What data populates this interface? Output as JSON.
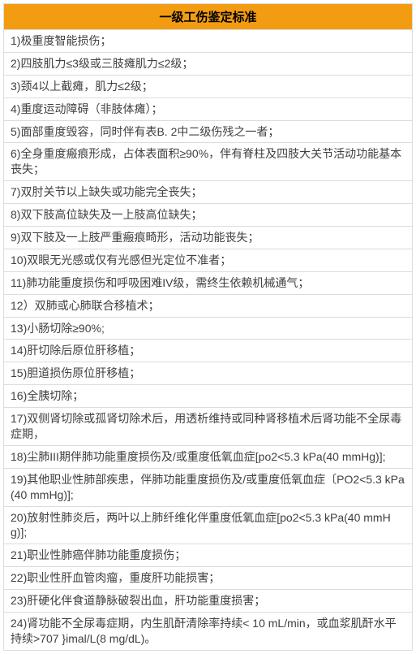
{
  "table": {
    "header_text": "一级工伤鉴定标准",
    "header_bg": "#f39c12",
    "header_text_color": "#000000",
    "header_fontsize": "15px",
    "border_color": "#dcdcdc",
    "cell_fontsize": "14px",
    "cell_text_color": "#404040",
    "cell_bg": "#ffffff",
    "rows": [
      "1)极重度智能损伤；",
      "2)四肢肌力≤3级或三肢瘫肌力≤2级；",
      "3)颈4以上截瘫，肌力≤2级；",
      "4)重度运动障碍（非肢体瘫）；",
      "5)面部重度毁容，同时伴有表B. 2中二级伤残之一者；",
      "6)全身重度瘢痕形成，占体表面积≥90%，伴有脊柱及四肢大关节活动功能基本丧失；",
      "7)双肘关节以上缺失或功能完全丧失；",
      "8)双下肢高位缺失及一上肢高位缺失；",
      "9)双下肢及一上肢严重瘢痕畸形，活动功能丧失；",
      "10)双眼无光感或仅有光感但光定位不准者；",
      "11)肺功能重度损伤和呼吸困难IV级，需终生依赖机械通气；",
      "12）双肺或心肺联合移植术；",
      "13)小肠切除≥90%;",
      "14)肝切除后原位肝移植；",
      "15)胆道损伤原位肝移植；",
      "16)全胰切除；",
      "17)双侧肾切除或孤肾切除术后，用透析维持或同种肾移植术后肾功能不全尿毒症期，",
      "18)尘肺III期伴肺功能重度损伤及/或重度低氧血症[po2<5.3 kPa(40 mmHg)];",
      "19)其他职业性肺部疾患，伴肺功能重度损伤及/或重度低氧血症〔PO2<5.3 kPa(40 mmHg)];",
      "20)放射性肺炎后，两叶以上肺纤维化伴重度低氧血症[po2<5.3 kPa(40 mmHg)];",
      "21)职业性肺癌伴肺功能重度损伤；",
      "22)职业性肝血管肉瘤，重度肝功能损害；",
      "23)肝硬化伴食道静脉破裂出血，肝功能重度损害；",
      "24)肾功能不全尿毒症期，内生肌酐清除率持续< 10 mL/min，或血浆肌酐水平持续>707 }imal/L(8 mg/dL)。"
    ]
  }
}
